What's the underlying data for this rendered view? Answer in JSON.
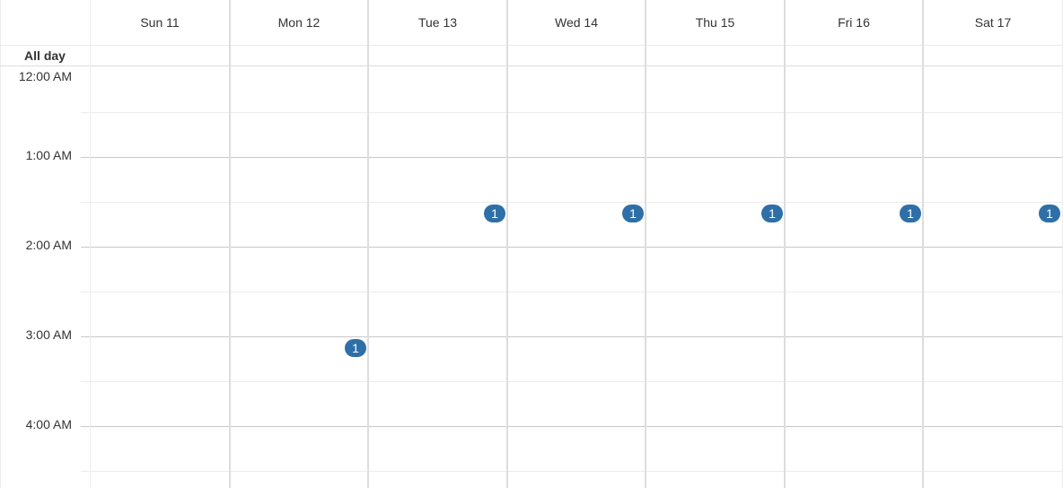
{
  "calendar": {
    "days": [
      {
        "label": "Sun 11"
      },
      {
        "label": "Mon 12"
      },
      {
        "label": "Tue 13"
      },
      {
        "label": "Wed 14"
      },
      {
        "label": "Thu 15"
      },
      {
        "label": "Fri 16"
      },
      {
        "label": "Sat 17"
      }
    ],
    "all_day_label": "All day",
    "time_labels": [
      "12:00 AM",
      "1:00 AM",
      "2:00 AM",
      "3:00 AM",
      "4:00 AM"
    ],
    "event_badges": [
      {
        "day": "Mon 12",
        "time": "3:00 AM",
        "count": "1"
      },
      {
        "day": "Tue 13",
        "time": "1:30 AM",
        "count": "1"
      },
      {
        "day": "Wed 14",
        "time": "1:30 AM",
        "count": "1"
      },
      {
        "day": "Thu 15",
        "time": "1:30 AM",
        "count": "1"
      },
      {
        "day": "Fri 16",
        "time": "1:30 AM",
        "count": "1"
      },
      {
        "day": "Sat 17",
        "time": "1:30 AM",
        "count": "1"
      }
    ],
    "badge_color": "#2f6fa7"
  }
}
